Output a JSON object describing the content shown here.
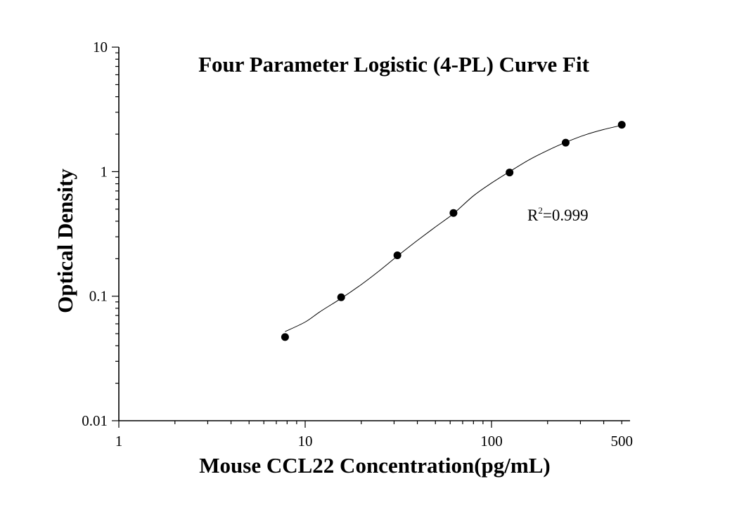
{
  "chart_data": {
    "type": "scatter",
    "title": "Four Parameter Logistic (4-PL) Curve Fit",
    "xlabel": "Mouse CCL22 Concentration(pg/mL)",
    "ylabel": "Optical Density",
    "x_scale": "log",
    "y_scale": "log",
    "xlim": [
      1,
      500
    ],
    "ylim": [
      0.01,
      10
    ],
    "x_tick_labels": [
      {
        "value": 1,
        "label": "1"
      },
      {
        "value": 10,
        "label": "10"
      },
      {
        "value": 100,
        "label": "100"
      },
      {
        "value": 500,
        "label": "500"
      }
    ],
    "y_tick_labels": [
      {
        "value": 0.01,
        "label": "0.01"
      },
      {
        "value": 0.1,
        "label": "0.1"
      },
      {
        "value": 1,
        "label": "1"
      },
      {
        "value": 10,
        "label": "10"
      }
    ],
    "grid": false,
    "series": [
      {
        "points": [
          {
            "x": 7.8,
            "y": 0.047
          },
          {
            "x": 15.6,
            "y": 0.098
          },
          {
            "x": 31.25,
            "y": 0.213
          },
          {
            "x": 62.5,
            "y": 0.466
          },
          {
            "x": 125,
            "y": 0.985
          },
          {
            "x": 250,
            "y": 1.71
          },
          {
            "x": 500,
            "y": 2.38
          }
        ]
      }
    ],
    "fit_curve": [
      {
        "x": 7.8,
        "y": 0.052
      },
      {
        "x": 10,
        "y": 0.062
      },
      {
        "x": 12,
        "y": 0.075
      },
      {
        "x": 15.6,
        "y": 0.096
      },
      {
        "x": 20,
        "y": 0.124
      },
      {
        "x": 25,
        "y": 0.16
      },
      {
        "x": 31.25,
        "y": 0.21
      },
      {
        "x": 40,
        "y": 0.28
      },
      {
        "x": 50,
        "y": 0.36
      },
      {
        "x": 62.5,
        "y": 0.46
      },
      {
        "x": 80,
        "y": 0.64
      },
      {
        "x": 100,
        "y": 0.81
      },
      {
        "x": 125,
        "y": 1.0
      },
      {
        "x": 160,
        "y": 1.25
      },
      {
        "x": 200,
        "y": 1.48
      },
      {
        "x": 250,
        "y": 1.72
      },
      {
        "x": 320,
        "y": 1.98
      },
      {
        "x": 400,
        "y": 2.18
      },
      {
        "x": 500,
        "y": 2.36
      }
    ],
    "annotation": {
      "base": "R",
      "sup": "2",
      "text": "=0.999"
    }
  }
}
